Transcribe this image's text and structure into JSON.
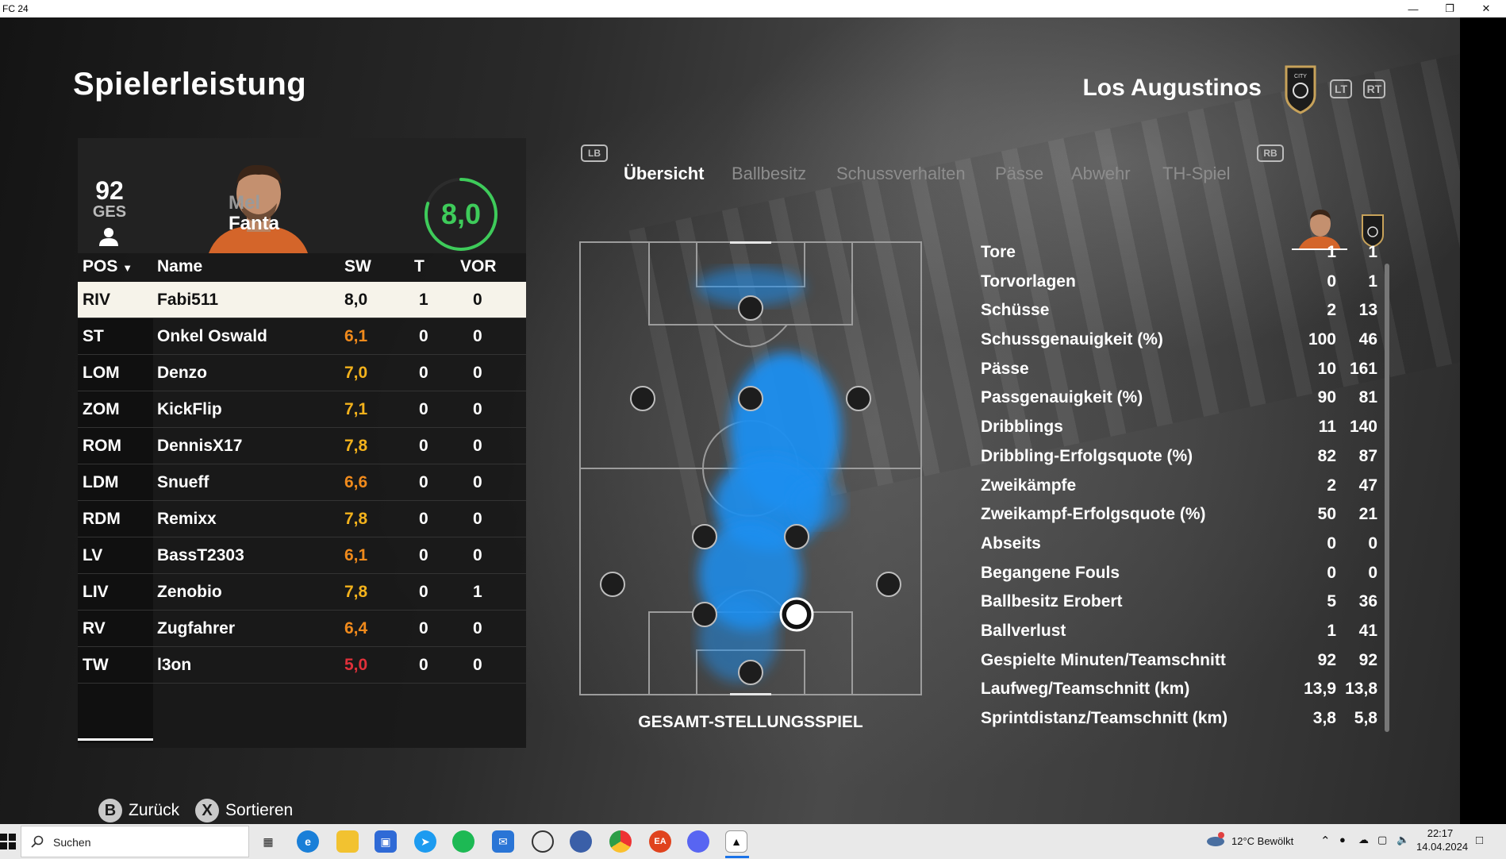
{
  "window": {
    "title": "FC 24",
    "controls": [
      "minimize-icon",
      "restore-icon",
      "close-icon"
    ]
  },
  "header": {
    "page_title": "Spielerleistung",
    "club_name": "Los Augustinos",
    "lt": "LT",
    "rt": "RT"
  },
  "player": {
    "ovr": "92",
    "ovr_label": "GES",
    "first_name": "Mel",
    "last_name": "Fanta",
    "match_rating": "8,0",
    "rating_fraction": 0.8
  },
  "table": {
    "headers": {
      "pos": "POS",
      "name": "Name",
      "sw": "SW",
      "t": "T",
      "vor": "VOR"
    },
    "rows": [
      {
        "pos": "RIV",
        "name": "Fabi511",
        "sw": "8,0",
        "t": "1",
        "vor": "0",
        "color": "#111111",
        "selected": true
      },
      {
        "pos": "ST",
        "name": "Onkel Oswald",
        "sw": "6,1",
        "t": "0",
        "vor": "0",
        "color": "#f08a1c"
      },
      {
        "pos": "LOM",
        "name": "Denzo",
        "sw": "7,0",
        "t": "0",
        "vor": "0",
        "color": "#f3b21c"
      },
      {
        "pos": "ZOM",
        "name": "KickFlip",
        "sw": "7,1",
        "t": "0",
        "vor": "0",
        "color": "#f3b21c"
      },
      {
        "pos": "ROM",
        "name": "DennisX17",
        "sw": "7,8",
        "t": "0",
        "vor": "0",
        "color": "#f3b21c"
      },
      {
        "pos": "LDM",
        "name": "Snueff",
        "sw": "6,6",
        "t": "0",
        "vor": "0",
        "color": "#f08a1c"
      },
      {
        "pos": "RDM",
        "name": "Remixx",
        "sw": "7,8",
        "t": "0",
        "vor": "0",
        "color": "#f3b21c"
      },
      {
        "pos": "LV",
        "name": "BassT2303",
        "sw": "6,1",
        "t": "0",
        "vor": "0",
        "color": "#f08a1c"
      },
      {
        "pos": "LIV",
        "name": "Zenobio",
        "sw": "7,8",
        "t": "0",
        "vor": "1",
        "color": "#f3b21c"
      },
      {
        "pos": "RV",
        "name": "Zugfahrer",
        "sw": "6,4",
        "t": "0",
        "vor": "0",
        "color": "#f08a1c"
      },
      {
        "pos": "TW",
        "name": "l3on",
        "sw": "5,0",
        "t": "0",
        "vor": "0",
        "color": "#e0303a"
      }
    ]
  },
  "tabs": {
    "lb": "LB",
    "rb": "RB",
    "items": [
      "Übersicht",
      "Ballbesitz",
      "Schussverhalten",
      "Pässe",
      "Abwehr",
      "TH-Spiel"
    ],
    "active": "Übersicht"
  },
  "pitch": {
    "caption": "GESAMT-STELLUNGSSPIEL"
  },
  "stats": [
    {
      "label": "Tore",
      "player": "1",
      "team": "1"
    },
    {
      "label": "Torvorlagen",
      "player": "0",
      "team": "1"
    },
    {
      "label": "Schüsse",
      "player": "2",
      "team": "13"
    },
    {
      "label": "Schussgenauigkeit (%)",
      "player": "100",
      "team": "46"
    },
    {
      "label": "Pässe",
      "player": "10",
      "team": "161"
    },
    {
      "label": "Passgenauigkeit (%)",
      "player": "90",
      "team": "81"
    },
    {
      "label": "Dribblings",
      "player": "11",
      "team": "140"
    },
    {
      "label": "Dribbling-Erfolgsquote (%)",
      "player": "82",
      "team": "87"
    },
    {
      "label": "Zweikämpfe",
      "player": "2",
      "team": "47"
    },
    {
      "label": "Zweikampf-Erfolgsquote (%)",
      "player": "50",
      "team": "21"
    },
    {
      "label": "Abseits",
      "player": "0",
      "team": "0"
    },
    {
      "label": "Begangene Fouls",
      "player": "0",
      "team": "0"
    },
    {
      "label": "Ballbesitz Erobert",
      "player": "5",
      "team": "36"
    },
    {
      "label": "Ballverlust",
      "player": "1",
      "team": "41"
    },
    {
      "label": "Gespielte Minuten/Teamschnitt",
      "player": "92",
      "team": "92"
    },
    {
      "label": "Laufweg/Teamschnitt (km)",
      "player": "13,9",
      "team": "13,8"
    },
    {
      "label": "Sprintdistanz/Teamschnitt (km)",
      "player": "3,8",
      "team": "5,8"
    }
  ],
  "footer": {
    "back_key": "B",
    "back_label": "Zurück",
    "sort_key": "X",
    "sort_label": "Sortieren"
  },
  "taskbar": {
    "search_placeholder": "Suchen",
    "weather": "12°C  Bewölkt",
    "time": "22:17",
    "date": "14.04.2024"
  }
}
